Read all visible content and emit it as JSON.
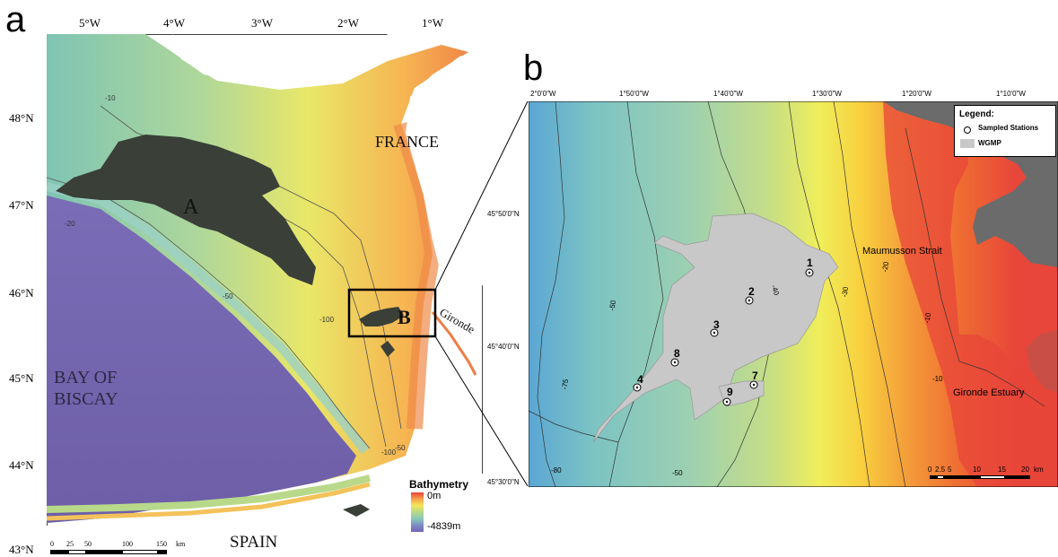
{
  "panel_a": {
    "letter": "a",
    "lon_ticks": [
      "5°W",
      "4°W",
      "3°W",
      "2°W",
      "1°W"
    ],
    "lat_ticks": [
      "48°N",
      "47°N",
      "46°N",
      "45°N",
      "44°N",
      "43°N"
    ],
    "labels": {
      "france": "FRANCE",
      "bay_line1": "BAY OF",
      "bay_line2": "BISCAY",
      "spain": "SPAIN",
      "area_a": "A",
      "area_b": "B",
      "gironde": "Gironde"
    },
    "contours": [
      "-10",
      "-20",
      "-50",
      "-100",
      "-50",
      "-100",
      "-50",
      "-100"
    ],
    "legend": {
      "title": "Bathymetry",
      "max": "0m",
      "min": "-4839m",
      "colors": [
        "#e8443a",
        "#f6a14a",
        "#f4e65a",
        "#b8d98a",
        "#88c9b8",
        "#7b8dc4",
        "#7464b0"
      ]
    },
    "scale": {
      "ticks": [
        "0",
        "25",
        "50",
        "100",
        "150"
      ],
      "unit": "km"
    }
  },
  "panel_b": {
    "letter": "b",
    "lon_ticks": [
      "2°0'0\"W",
      "1°50'0\"W",
      "1°40'0\"W",
      "1°30'0\"W",
      "1°20'0\"W",
      "1°10'0\"W"
    ],
    "lat_ticks": [
      "45°50'0\"N",
      "45°40'0\"N",
      "45°30'0\"N"
    ],
    "labels": {
      "maumusson": "Maumusson Strait",
      "gironde_estuary": "Gironde Estuary"
    },
    "contours": [
      "-80",
      "-75",
      "-60",
      "-50",
      "-50",
      "-40",
      "-30",
      "-20",
      "-10",
      "-10"
    ],
    "stations": [
      {
        "id": "1"
      },
      {
        "id": "2"
      },
      {
        "id": "3"
      },
      {
        "id": "4"
      },
      {
        "id": "7"
      },
      {
        "id": "8"
      },
      {
        "id": "9"
      }
    ],
    "legend": {
      "title": "Legend:",
      "stations": "Sampled Stations",
      "wgmp": "WGMP"
    },
    "scale": {
      "ticks": [
        "0",
        "2.5",
        "5",
        "10",
        "15",
        "20"
      ],
      "unit": "km"
    }
  },
  "colors": {
    "wgmp": "#c8c8c8",
    "area_dark": "#3a3f38",
    "land": "#ffffff",
    "land_b": "#6b6b6b",
    "deep": "#7464b0"
  }
}
